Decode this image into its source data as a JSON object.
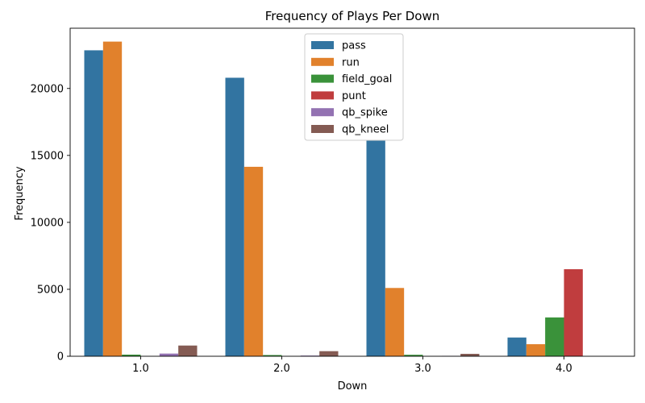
{
  "chart_data": {
    "type": "bar",
    "title": "Frequency of Plays Per Down",
    "xlabel": "Down",
    "ylabel": "Frequency",
    "categories": [
      "1.0",
      "2.0",
      "3.0",
      "4.0"
    ],
    "ylim": [
      0,
      24500
    ],
    "yticks": [
      0,
      5000,
      10000,
      15000,
      20000
    ],
    "grid": false,
    "legend_position": "top-center",
    "series": [
      {
        "name": "pass",
        "color": "#3274a1",
        "values": [
          22850,
          20800,
          16100,
          1400
        ]
      },
      {
        "name": "run",
        "color": "#e1812c",
        "values": [
          23500,
          14150,
          5100,
          900
        ]
      },
      {
        "name": "field_goal",
        "color": "#3a923a",
        "values": [
          120,
          90,
          110,
          2900
        ]
      },
      {
        "name": "punt",
        "color": "#c03d3e",
        "values": [
          0,
          0,
          0,
          6500
        ]
      },
      {
        "name": "qb_spike",
        "color": "#9372b2",
        "values": [
          200,
          50,
          30,
          0
        ]
      },
      {
        "name": "qb_kneel",
        "color": "#845b53",
        "values": [
          800,
          380,
          180,
          0
        ]
      }
    ]
  }
}
